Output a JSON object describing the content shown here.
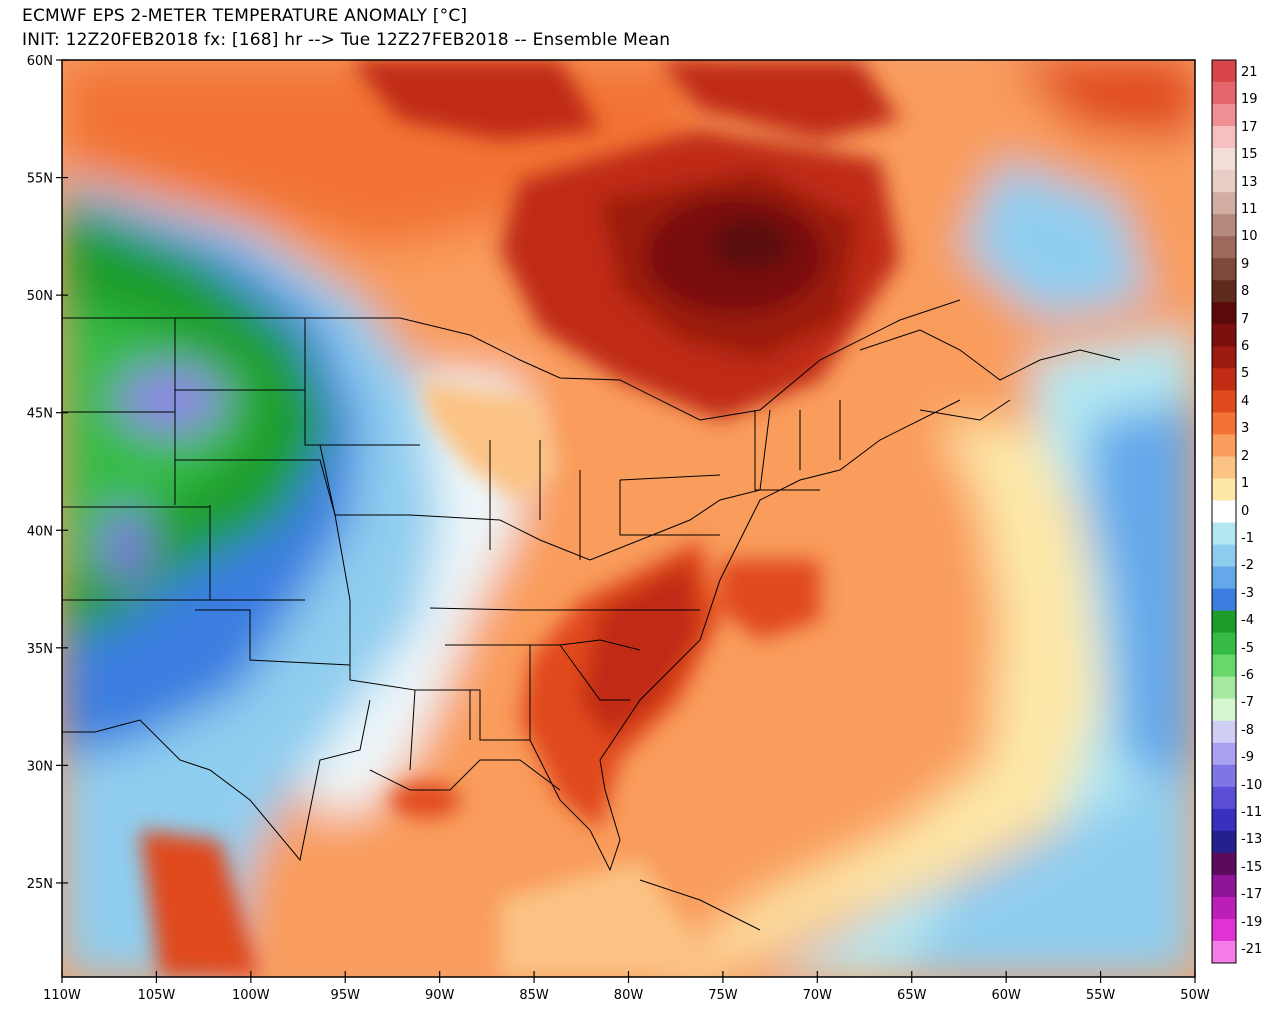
{
  "title": "ECMWF EPS 2-METER TEMPERATURE ANOMALY [°C]",
  "subtitle": "INIT: 12Z20FEB2018 fx: [168] hr --> Tue 12Z27FEB2018 -- Ensemble Mean",
  "map": {
    "projection": "lat-lon",
    "lon_range": [
      -110,
      -50
    ],
    "lat_range": [
      21,
      60
    ],
    "lat_ticks": [
      "60N",
      "55N",
      "50N",
      "45N",
      "40N",
      "35N",
      "30N",
      "25N"
    ],
    "lon_ticks": [
      "110W",
      "105W",
      "100W",
      "95W",
      "90W",
      "85W",
      "80W",
      "75W",
      "70W",
      "65W",
      "60W",
      "55W",
      "50W"
    ]
  },
  "colorbar": {
    "unit": "°C",
    "labels": [
      "21",
      "19",
      "17",
      "15",
      "13",
      "11",
      "10",
      "9",
      "8",
      "7",
      "6",
      "5",
      "4",
      "3",
      "2",
      "1",
      "0",
      "-1",
      "-2",
      "-3",
      "-4",
      "-5",
      "-6",
      "-7",
      "-8",
      "-9",
      "-10",
      "-11",
      "-13",
      "-15",
      "-17",
      "-19",
      "-21"
    ],
    "colors": [
      "#d9464a",
      "#e4656a",
      "#ee8f93",
      "#f6bfc2",
      "#f2ddd9",
      "#e6cdc6",
      "#d3ada2",
      "#b78a7e",
      "#9b6a5d",
      "#7e4a3c",
      "#5d2a1d",
      "#5a0a0a",
      "#7a0f0c",
      "#9c1a10",
      "#c02c14",
      "#e04a1c",
      "#f27335",
      "#f99c5c",
      "#fbc384",
      "#fde8a8",
      "#ffffff",
      "#b3e8f2",
      "#8fcdef",
      "#64a8ea",
      "#3b7ee0",
      "#1c9d2a",
      "#36bb44",
      "#68d86a",
      "#a5eaa0",
      "#d6f6d0",
      "#cfcff6",
      "#a8a2f0",
      "#7f76e6",
      "#5a4fd6",
      "#3b2fbe",
      "#26208f",
      "#5c0a5c",
      "#8d1494",
      "#bc1fb6",
      "#e132d6",
      "#f47ce9"
    ]
  }
}
